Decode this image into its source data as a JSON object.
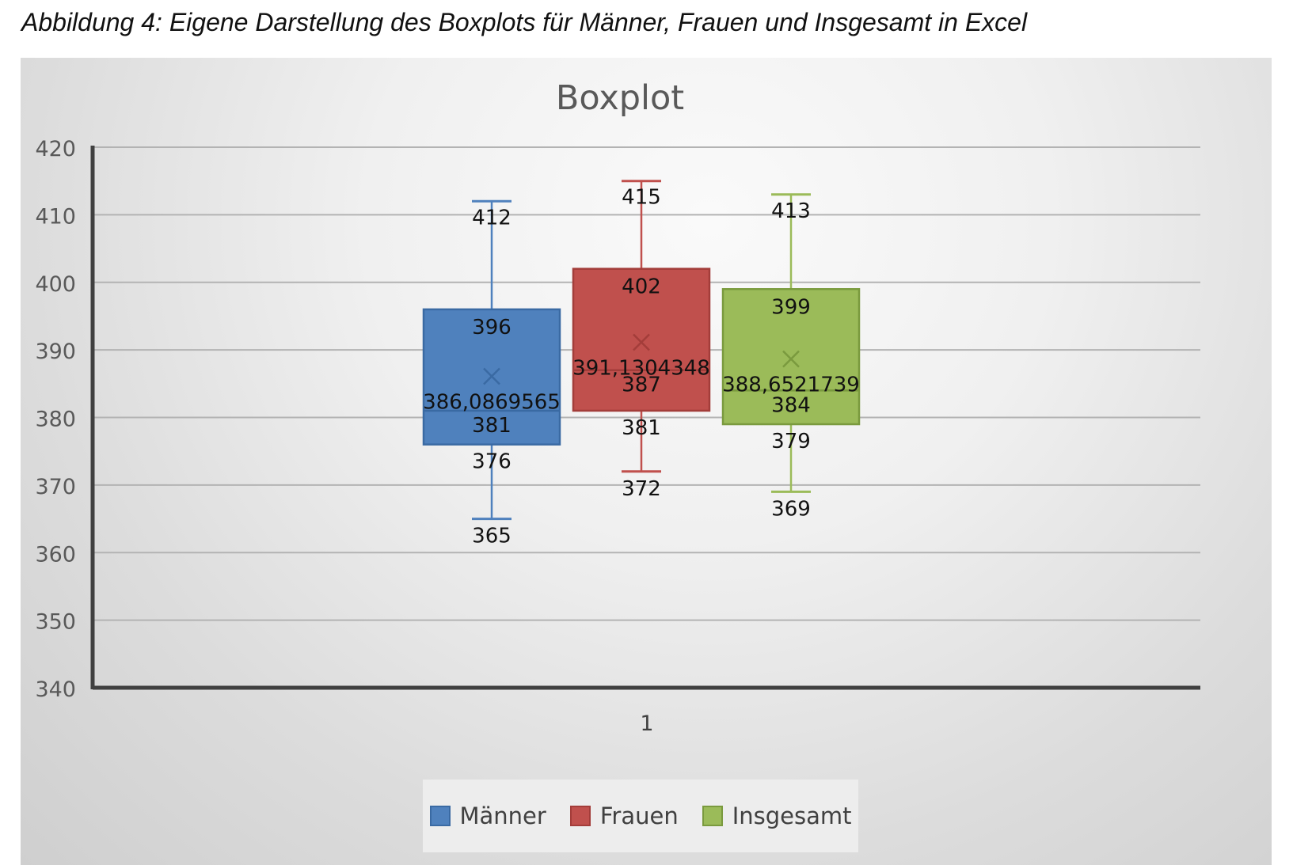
{
  "caption": "Abbildung 4: Eigene Darstellung des Boxplots für Männer, Frauen und Insgesamt in Excel",
  "chart_data": {
    "type": "boxplot",
    "title": "Boxplot",
    "categories": [
      "1"
    ],
    "ylim": [
      340,
      420
    ],
    "yticks": [
      340,
      350,
      360,
      370,
      380,
      390,
      400,
      410,
      420
    ],
    "grid": true,
    "legend_position": "bottom",
    "series": [
      {
        "name": "Männer",
        "color": "#4f81bd",
        "stroke": "#3a6aa3",
        "min": 365,
        "q1": 376,
        "median": 381,
        "q3": 396,
        "max": 412,
        "mean": 386.0869565,
        "labels": {
          "min": "365",
          "q1": "376",
          "median": "381",
          "q3": "396",
          "max": "412",
          "mean": "386,0869565"
        }
      },
      {
        "name": "Frauen",
        "color": "#c0504d",
        "stroke": "#a33d3a",
        "min": 372,
        "q1": 381,
        "median": 387,
        "q3": 402,
        "max": 415,
        "mean": 391.1304348,
        "labels": {
          "min": "372",
          "q1": "381",
          "median": "387",
          "q3": "402",
          "max": "415",
          "mean": "391,1304348"
        }
      },
      {
        "name": "Insgesamt",
        "color": "#9bbb59",
        "stroke": "#7a9a3e",
        "min": 369,
        "q1": 379,
        "median": 384,
        "q3": 399,
        "max": 413,
        "mean": 388.6521739,
        "labels": {
          "min": "369",
          "q1": "379",
          "median": "384",
          "q3": "399",
          "max": "413",
          "mean": "388,6521739"
        }
      }
    ]
  }
}
